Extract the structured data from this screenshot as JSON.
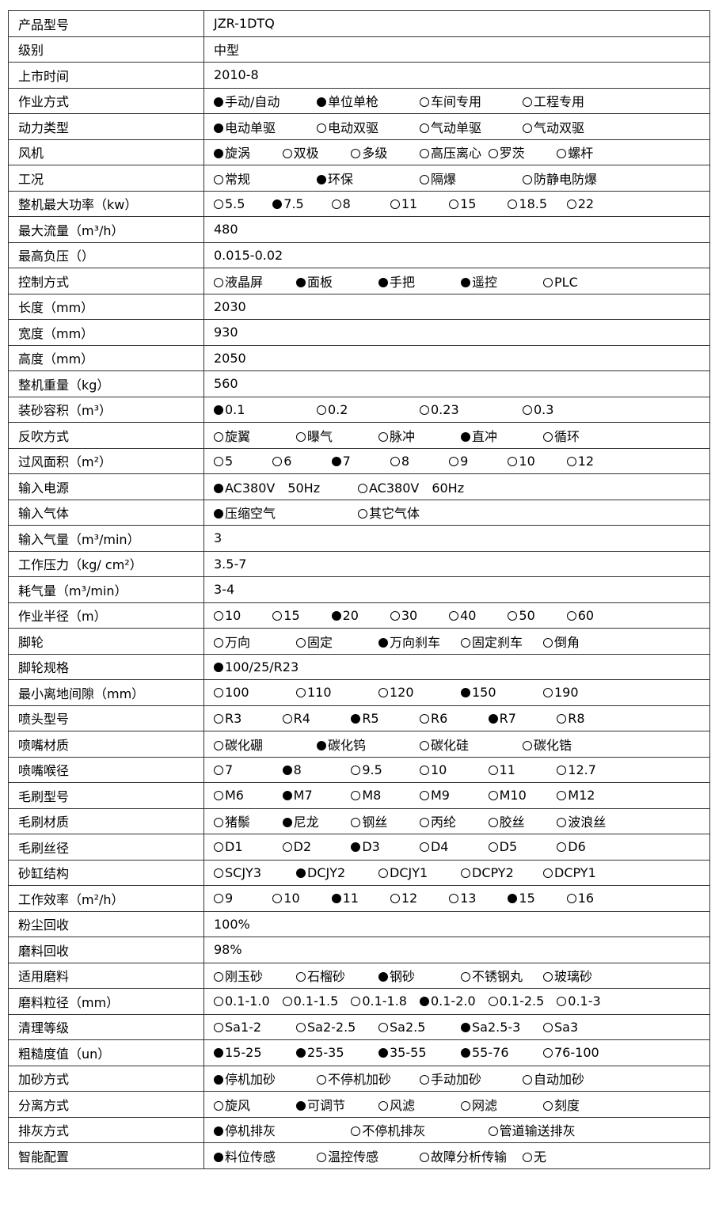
{
  "rows": [
    {
      "label": "产品型号",
      "value": "JZR-1DTQ"
    },
    {
      "label": "级别",
      "value": "中型"
    },
    {
      "label": "上市时间",
      "value": "2010-8"
    },
    {
      "label": "作业方式",
      "options": [
        {
          "t": "手动/自动",
          "s": true
        },
        {
          "t": "单位单枪",
          "s": true
        },
        {
          "t": "车间专用",
          "s": false
        },
        {
          "t": "工程专用",
          "s": false
        }
      ]
    },
    {
      "label": "动力类型",
      "options": [
        {
          "t": "电动单驱",
          "s": true
        },
        {
          "t": "电动双驱",
          "s": false
        },
        {
          "t": "气动单驱",
          "s": false
        },
        {
          "t": "气动双驱",
          "s": false
        }
      ]
    },
    {
      "label": "风机",
      "options": [
        {
          "t": "旋涡",
          "s": true
        },
        {
          "t": "双极",
          "s": false
        },
        {
          "t": "多级",
          "s": false
        },
        {
          "t": "高压离心",
          "s": false
        },
        {
          "t": "罗茨",
          "s": false
        },
        {
          "t": "螺杆",
          "s": false
        }
      ]
    },
    {
      "label": "工况",
      "options": [
        {
          "t": "常规",
          "s": false
        },
        {
          "t": "环保",
          "s": true
        },
        {
          "t": "隔爆",
          "s": false
        },
        {
          "t": "防静电防爆",
          "s": false
        }
      ]
    },
    {
      "label": "整机最大功率（kw）",
      "options": [
        {
          "t": "5.5",
          "s": false
        },
        {
          "t": "7.5",
          "s": true
        },
        {
          "t": "8",
          "s": false
        },
        {
          "t": "11",
          "s": false
        },
        {
          "t": "15",
          "s": false
        },
        {
          "t": "18.5",
          "s": false
        },
        {
          "t": "22",
          "s": false
        }
      ]
    },
    {
      "label": "最大流量（m³/h）",
      "value": "480"
    },
    {
      "label": "最高负压（）",
      "value": "0.015-0.02"
    },
    {
      "label": "控制方式",
      "options": [
        {
          "t": "液晶屏",
          "s": false
        },
        {
          "t": "面板",
          "s": true
        },
        {
          "t": "手把",
          "s": true
        },
        {
          "t": "遥控",
          "s": true
        },
        {
          "t": "PLC",
          "s": false
        }
      ]
    },
    {
      "label": "长度（mm）",
      "value": "2030"
    },
    {
      "label": "宽度（mm）",
      "value": "930"
    },
    {
      "label": "高度（mm）",
      "value": "2050"
    },
    {
      "label": "整机重量（kg）",
      "value": "560"
    },
    {
      "label": "装砂容积（m³）",
      "options": [
        {
          "t": "0.1",
          "s": true
        },
        {
          "t": "0.2",
          "s": false
        },
        {
          "t": "0.23",
          "s": false
        },
        {
          "t": "0.3",
          "s": false
        }
      ]
    },
    {
      "label": "反吹方式",
      "options": [
        {
          "t": "旋翼",
          "s": false
        },
        {
          "t": "曝气",
          "s": false
        },
        {
          "t": "脉冲",
          "s": false
        },
        {
          "t": "直冲",
          "s": true
        },
        {
          "t": "循环",
          "s": false
        }
      ]
    },
    {
      "label": "过风面积（m²）",
      "options": [
        {
          "t": "5",
          "s": false
        },
        {
          "t": "6",
          "s": false
        },
        {
          "t": "7",
          "s": true
        },
        {
          "t": "8",
          "s": false
        },
        {
          "t": "9",
          "s": false
        },
        {
          "t": "10",
          "s": false
        },
        {
          "t": "12",
          "s": false
        }
      ]
    },
    {
      "label": "输入电源",
      "options": [
        {
          "t": "AC380V　50Hz",
          "s": true
        },
        {
          "t": "AC380V　60Hz",
          "s": false
        }
      ]
    },
    {
      "label": "输入气体",
      "options": [
        {
          "t": "压缩空气",
          "s": true
        },
        {
          "t": "其它气体",
          "s": false
        }
      ]
    },
    {
      "label": "输入气量（m³/min）",
      "value": "3"
    },
    {
      "label": "工作压力（kg/ cm²）",
      "value": "3.5-7"
    },
    {
      "label": "耗气量（m³/min）",
      "value": "3-4"
    },
    {
      "label": "作业半径（m）",
      "options": [
        {
          "t": "10",
          "s": false
        },
        {
          "t": "15",
          "s": false
        },
        {
          "t": "20",
          "s": true
        },
        {
          "t": "30",
          "s": false
        },
        {
          "t": "40",
          "s": false
        },
        {
          "t": "50",
          "s": false
        },
        {
          "t": "60",
          "s": false
        }
      ]
    },
    {
      "label": "脚轮",
      "options": [
        {
          "t": "万向",
          "s": false
        },
        {
          "t": "固定",
          "s": false
        },
        {
          "t": "万向刹车",
          "s": true
        },
        {
          "t": "固定刹车",
          "s": false
        },
        {
          "t": "倒角",
          "s": false
        }
      ]
    },
    {
      "label": "脚轮规格",
      "options": [
        {
          "t": "100/25/R23",
          "s": true
        }
      ]
    },
    {
      "label": "最小离地间隙（mm）",
      "options": [
        {
          "t": "100",
          "s": false
        },
        {
          "t": "110",
          "s": false
        },
        {
          "t": "120",
          "s": false
        },
        {
          "t": "150",
          "s": true
        },
        {
          "t": "190",
          "s": false
        }
      ]
    },
    {
      "label": "喷头型号",
      "options": [
        {
          "t": "R3",
          "s": false
        },
        {
          "t": "R4",
          "s": false
        },
        {
          "t": "R5",
          "s": true
        },
        {
          "t": "R6",
          "s": false
        },
        {
          "t": "R7",
          "s": true
        },
        {
          "t": "R8",
          "s": false
        }
      ]
    },
    {
      "label": "喷嘴材质",
      "options": [
        {
          "t": "碳化硼",
          "s": false
        },
        {
          "t": "碳化钨",
          "s": true
        },
        {
          "t": "碳化硅",
          "s": false
        },
        {
          "t": "碳化锆",
          "s": false
        }
      ]
    },
    {
      "label": "喷嘴喉径",
      "options": [
        {
          "t": "7",
          "s": false
        },
        {
          "t": "8",
          "s": true
        },
        {
          "t": "9.5",
          "s": false
        },
        {
          "t": "10",
          "s": false
        },
        {
          "t": "11",
          "s": false
        },
        {
          "t": "12.7",
          "s": false
        }
      ]
    },
    {
      "label": "毛刷型号",
      "options": [
        {
          "t": "M6",
          "s": false
        },
        {
          "t": "M7",
          "s": true
        },
        {
          "t": "M8",
          "s": false
        },
        {
          "t": "M9",
          "s": false
        },
        {
          "t": "M10",
          "s": false
        },
        {
          "t": "M12",
          "s": false
        }
      ]
    },
    {
      "label": "毛刷材质",
      "options": [
        {
          "t": "猪鬃",
          "s": false
        },
        {
          "t": "尼龙",
          "s": true
        },
        {
          "t": "钢丝",
          "s": false
        },
        {
          "t": "丙纶",
          "s": false
        },
        {
          "t": "胶丝",
          "s": false
        },
        {
          "t": "波浪丝",
          "s": false
        }
      ]
    },
    {
      "label": "毛刷丝径",
      "options": [
        {
          "t": "D1",
          "s": false
        },
        {
          "t": "D2",
          "s": false
        },
        {
          "t": "D3",
          "s": true
        },
        {
          "t": "D4",
          "s": false
        },
        {
          "t": "D5",
          "s": false
        },
        {
          "t": "D6",
          "s": false
        }
      ]
    },
    {
      "label": "砂缸结构",
      "options": [
        {
          "t": "SCJY3",
          "s": false
        },
        {
          "t": "DCJY2",
          "s": true
        },
        {
          "t": "DCJY1",
          "s": false
        },
        {
          "t": "DCPY2",
          "s": false
        },
        {
          "t": "DCPY1",
          "s": false
        }
      ]
    },
    {
      "label": "工作效率（m²/h）",
      "options": [
        {
          "t": "9",
          "s": false
        },
        {
          "t": "10",
          "s": false
        },
        {
          "t": "11",
          "s": true
        },
        {
          "t": "12",
          "s": false
        },
        {
          "t": "13",
          "s": false
        },
        {
          "t": "15",
          "s": true
        },
        {
          "t": "16",
          "s": false
        }
      ]
    },
    {
      "label": "粉尘回收",
      "value": "100%"
    },
    {
      "label": "磨料回收",
      "value": "98%"
    },
    {
      "label": "适用磨料",
      "options": [
        {
          "t": "刚玉砂",
          "s": false
        },
        {
          "t": "石榴砂",
          "s": false
        },
        {
          "t": "钢砂",
          "s": true
        },
        {
          "t": "不锈钢丸",
          "s": false
        },
        {
          "t": "玻璃砂",
          "s": false
        }
      ]
    },
    {
      "label": "磨料粒径（mm）",
      "options": [
        {
          "t": "0.1-1.0",
          "s": false
        },
        {
          "t": "0.1-1.5",
          "s": false
        },
        {
          "t": "0.1-1.8",
          "s": false
        },
        {
          "t": "0.1-2.0",
          "s": true
        },
        {
          "t": "0.1-2.5",
          "s": false
        },
        {
          "t": "0.1-3",
          "s": false
        }
      ]
    },
    {
      "label": "清理等级",
      "options": [
        {
          "t": "Sa1-2",
          "s": false
        },
        {
          "t": "Sa2-2.5",
          "s": false
        },
        {
          "t": "Sa2.5",
          "s": false
        },
        {
          "t": "Sa2.5-3",
          "s": true
        },
        {
          "t": "Sa3",
          "s": false
        }
      ]
    },
    {
      "label": "粗糙度值（un）",
      "options": [
        {
          "t": "15-25",
          "s": true
        },
        {
          "t": "25-35",
          "s": true
        },
        {
          "t": "35-55",
          "s": true
        },
        {
          "t": "55-76",
          "s": true
        },
        {
          "t": "76-100",
          "s": false
        }
      ]
    },
    {
      "label": "加砂方式",
      "options": [
        {
          "t": "停机加砂",
          "s": true
        },
        {
          "t": "不停机加砂",
          "s": false
        },
        {
          "t": "手动加砂",
          "s": false
        },
        {
          "t": "自动加砂",
          "s": false
        }
      ]
    },
    {
      "label": "分离方式",
      "options": [
        {
          "t": "旋风",
          "s": false
        },
        {
          "t": "可调节",
          "s": true
        },
        {
          "t": "风滤",
          "s": false
        },
        {
          "t": "网滤",
          "s": false
        },
        {
          "t": "刻度",
          "s": false
        }
      ]
    },
    {
      "label": "排灰方式",
      "options": [
        {
          "t": "停机排灰",
          "s": true
        },
        {
          "t": "不停机排灰",
          "s": false
        },
        {
          "t": "管道输送排灰",
          "s": false
        }
      ]
    },
    {
      "label": "智能配置",
      "options": [
        {
          "t": "料位传感",
          "s": true
        },
        {
          "t": "温控传感",
          "s": false
        },
        {
          "t": "故障分析传输",
          "s": false
        },
        {
          "t": "无",
          "s": false
        }
      ]
    }
  ]
}
